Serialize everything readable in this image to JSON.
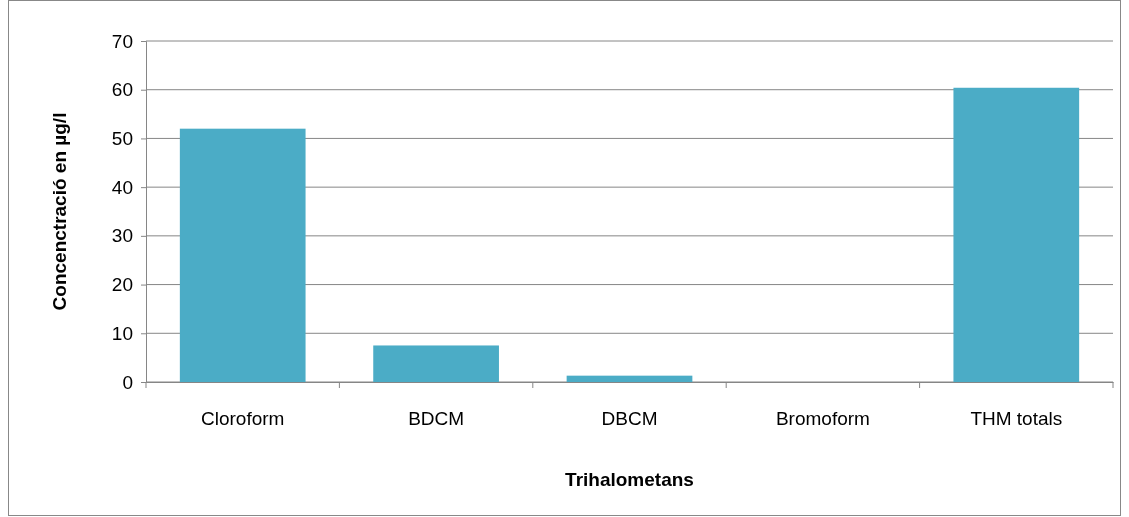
{
  "chart_data": {
    "type": "bar",
    "xlabel": "Trihalometans",
    "ylabel": "Concenctració en µg/l",
    "categories": [
      "Cloroform",
      "BDCM",
      "DBCM",
      "Bromoform",
      "THM totals"
    ],
    "values": [
      52,
      7.5,
      1.3,
      0,
      60.4
    ],
    "color": "#4bacc6",
    "ylim": [
      0,
      70
    ],
    "yticks": [
      0,
      10,
      20,
      30,
      40,
      50,
      60,
      70
    ],
    "grid": "y"
  }
}
